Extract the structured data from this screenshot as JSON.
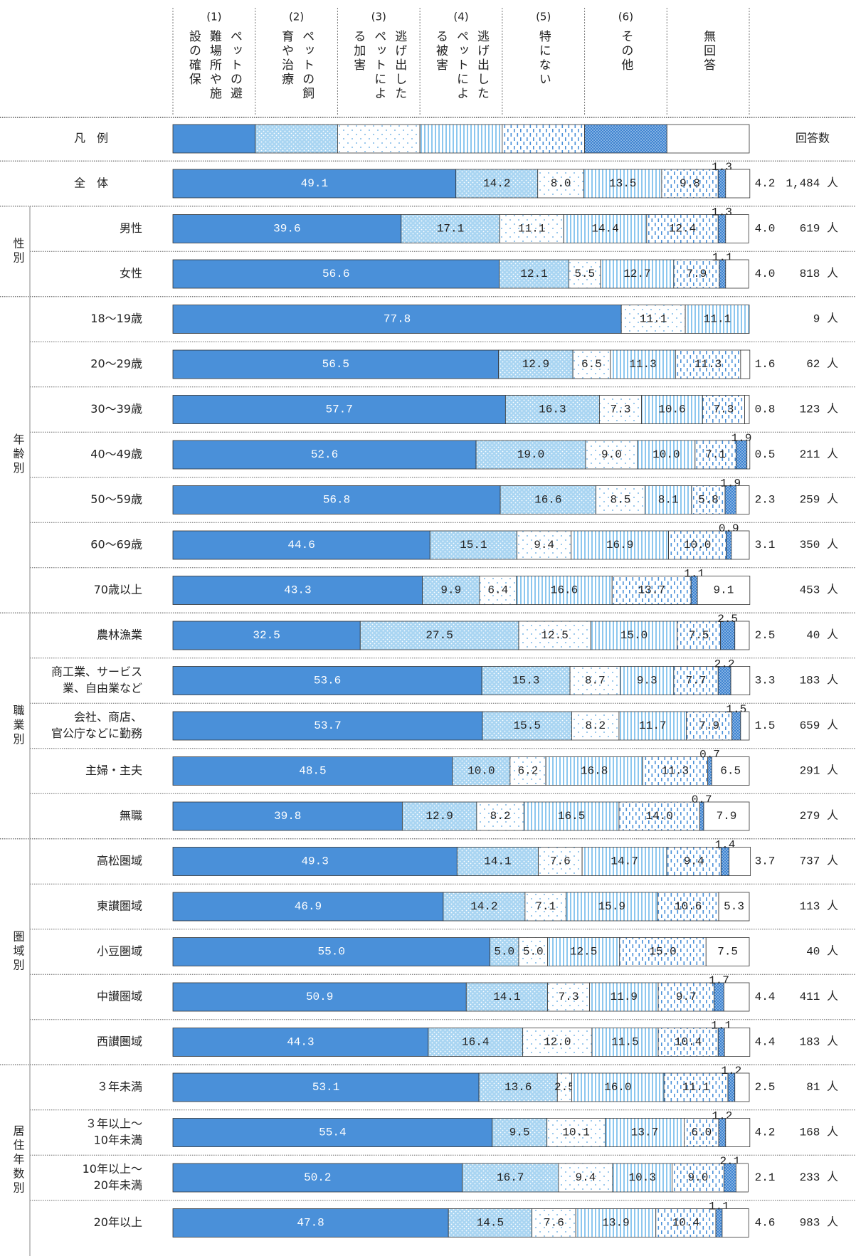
{
  "chart_data": {
    "type": "stacked-bar",
    "legend_label": "凡　例",
    "count_header": "回答数",
    "series": [
      {
        "number": "(1)",
        "name": [
          "ペットの避",
          "難場所や施",
          "設の確保"
        ],
        "color": "#4a90d9",
        "pattern": "solid",
        "values": [
          49.1,
          39.6,
          56.6,
          77.8,
          56.5,
          57.7,
          52.6,
          56.8,
          44.6,
          43.3,
          32.5,
          53.6,
          53.7,
          48.5,
          39.8,
          49.3,
          46.9,
          55.0,
          50.9,
          44.3,
          53.1,
          55.4,
          50.2,
          47.8
        ],
        "value_labels": [
          "49.1",
          "39.6",
          "56.6",
          "77.8",
          "56.5",
          "57.7",
          "52.6",
          "56.8",
          "44.6",
          "43.3",
          "32.5",
          "53.6",
          "53.7",
          "48.5",
          "39.8",
          "49.3",
          "46.9",
          "55.0",
          "50.9",
          "44.3",
          "53.1",
          "55.4",
          "50.2",
          "47.8"
        ]
      },
      {
        "number": "(2)",
        "name": [
          "ペットの飼",
          "育や治療"
        ],
        "color": "#a9d5f2",
        "pattern": "dots",
        "values": [
          14.2,
          17.1,
          12.1,
          null,
          12.9,
          16.3,
          19.0,
          16.6,
          15.1,
          9.9,
          27.5,
          15.3,
          15.5,
          10.0,
          12.9,
          14.1,
          14.2,
          5.0,
          14.1,
          16.4,
          13.6,
          9.5,
          16.7,
          14.5
        ],
        "value_labels": [
          "14.2",
          "17.1",
          "12.1",
          null,
          "12.9",
          "16.3",
          "19.0",
          "16.6",
          "15.1",
          "9.9",
          "27.5",
          "15.3",
          "15.5",
          "10.0",
          "12.9",
          "14.1",
          "14.2",
          "5.0",
          "14.1",
          "16.4",
          "13.6",
          "9.5",
          "16.7",
          "14.5"
        ]
      },
      {
        "number": "(3)",
        "name": [
          "逃げ出した",
          "ペットによ",
          "る加害"
        ],
        "color": "#7db8e8",
        "pattern": "sparse-dots",
        "values": [
          8.0,
          11.1,
          5.5,
          11.1,
          6.5,
          7.3,
          9.0,
          8.5,
          9.4,
          6.4,
          12.5,
          8.7,
          8.2,
          6.2,
          8.2,
          7.6,
          7.1,
          5.0,
          7.3,
          12.0,
          2.5,
          10.1,
          9.4,
          7.6
        ],
        "value_labels": [
          "8.0",
          "11.1",
          "5.5",
          "11.1",
          "6.5",
          "7.3",
          "9.0",
          "8.5",
          "9.4",
          "6.4",
          "12.5",
          "8.7",
          "8.2",
          "6.2",
          "8.2",
          "7.6",
          "7.1",
          "5.0",
          "7.3",
          "12.0",
          "2.5",
          "10.1",
          "9.4",
          "7.6"
        ]
      },
      {
        "number": "(4)",
        "name": [
          "逃げ出した",
          "ペットによ",
          "る被害"
        ],
        "color": "#8cc7ef",
        "pattern": "stripes",
        "values": [
          13.5,
          14.4,
          12.7,
          11.1,
          11.3,
          10.6,
          10.0,
          8.1,
          16.9,
          16.6,
          15.0,
          9.3,
          11.7,
          16.8,
          16.5,
          14.7,
          15.9,
          12.5,
          11.9,
          11.5,
          16.0,
          13.7,
          10.3,
          13.9
        ],
        "value_labels": [
          "13.5",
          "14.4",
          "12.7",
          "11.1",
          "11.3",
          "10.6",
          "10.0",
          "8.1",
          "16.9",
          "16.6",
          "15.0",
          "9.3",
          "11.7",
          "16.8",
          "16.5",
          "14.7",
          "15.9",
          "12.5",
          "11.9",
          "11.5",
          "16.0",
          "13.7",
          "10.3",
          "13.9"
        ]
      },
      {
        "number": "(5)",
        "name": [
          "特にない"
        ],
        "color": "#4a90d9",
        "pattern": "dashes",
        "values": [
          9.8,
          12.4,
          7.9,
          null,
          11.3,
          7.3,
          7.1,
          5.8,
          10.0,
          13.7,
          7.5,
          7.7,
          7.9,
          11.3,
          14.0,
          9.4,
          10.6,
          15.0,
          9.7,
          10.4,
          11.1,
          6.0,
          9.0,
          10.4
        ],
        "value_labels": [
          "9.8",
          "12.4",
          "7.9",
          null,
          "11.3",
          "7.3",
          "7.1",
          "5.8",
          "10.0",
          "13.7",
          "7.5",
          "7.7",
          "7.9",
          "11.3",
          "14.0",
          "9.4",
          "10.6",
          "15.0",
          "9.7",
          "10.4",
          "11.1",
          "6.0",
          "9.0",
          "10.4"
        ]
      },
      {
        "number": "(6)",
        "name": [
          "その他"
        ],
        "color": "#3d83d0",
        "pattern": "dense-dots",
        "values": [
          1.3,
          1.3,
          1.1,
          null,
          null,
          null,
          1.9,
          1.9,
          0.9,
          1.1,
          2.5,
          2.2,
          1.5,
          0.7,
          0.7,
          1.4,
          null,
          null,
          1.7,
          1.1,
          1.2,
          1.2,
          2.1,
          1.1
        ],
        "value_labels": [
          "1.3",
          "1.3",
          "1.1",
          null,
          null,
          null,
          "1.9",
          "1.9",
          "0.9",
          "1.1",
          "2.5",
          "2.2",
          "1.5",
          "0.7",
          "0.7",
          "1.4",
          null,
          null,
          "1.7",
          "1.1",
          "1.2",
          "1.2",
          "2.1",
          "1.1"
        ]
      },
      {
        "name": [
          "無回答"
        ],
        "color": "#ffffff",
        "pattern": "none",
        "values": [
          4.2,
          4.0,
          4.0,
          null,
          1.6,
          0.8,
          0.5,
          2.3,
          3.1,
          9.1,
          2.5,
          3.3,
          1.5,
          6.5,
          7.9,
          3.7,
          5.3,
          7.5,
          4.4,
          4.4,
          2.5,
          4.2,
          2.1,
          4.6
        ],
        "value_labels": [
          "4.2",
          "4.0",
          "4.0",
          null,
          "1.6",
          "0.8",
          "0.5",
          "2.3",
          "3.1",
          "9.1",
          "2.5",
          "3.3",
          "1.5",
          "6.5",
          "7.9",
          "3.7",
          "5.3",
          "7.5",
          "4.4",
          "4.4",
          "2.5",
          "4.2",
          "2.1",
          "4.6"
        ]
      }
    ],
    "count_labels": [
      "1,484 人",
      "619 人",
      "818 人",
      "9 人",
      "62 人",
      "123 人",
      "211 人",
      "259 人",
      "350 人",
      "453 人",
      "40 人",
      "183 人",
      "659 人",
      "291 人",
      "279 人",
      "737 人",
      "113 人",
      "40 人",
      "411 人",
      "183 人",
      "81 人",
      "168 人",
      "233 人",
      "983 人"
    ],
    "groups": [
      {
        "categories": [
          [
            "全　体"
          ]
        ]
      },
      {
        "label": "性別",
        "categories": [
          [
            "男性"
          ],
          [
            "女性"
          ]
        ]
      },
      {
        "label": "年齢別",
        "categories": [
          [
            "18～19歳"
          ],
          [
            "20～29歳"
          ],
          [
            "30～39歳"
          ],
          [
            "40～49歳"
          ],
          [
            "50～59歳"
          ],
          [
            "60～69歳"
          ],
          [
            "70歳以上"
          ]
        ]
      },
      {
        "label": "職業別",
        "categories": [
          [
            "農林漁業"
          ],
          [
            "商工業、サービス",
            "業、自由業など"
          ],
          [
            "会社、商店、",
            "官公庁などに勤務"
          ],
          [
            "主婦・主夫"
          ],
          [
            "無職"
          ]
        ]
      },
      {
        "label": "圏域別",
        "categories": [
          [
            "高松圏域"
          ],
          [
            "東讃圏域"
          ],
          [
            "小豆圏域"
          ],
          [
            "中讃圏域"
          ],
          [
            "西讃圏域"
          ]
        ]
      },
      {
        "label": "居住年数別",
        "categories": [
          [
            "３年未満"
          ],
          [
            "３年以上～",
            "10年未満"
          ],
          [
            "10年以上～",
            "20年未満"
          ],
          [
            "20年以上"
          ]
        ]
      }
    ]
  }
}
